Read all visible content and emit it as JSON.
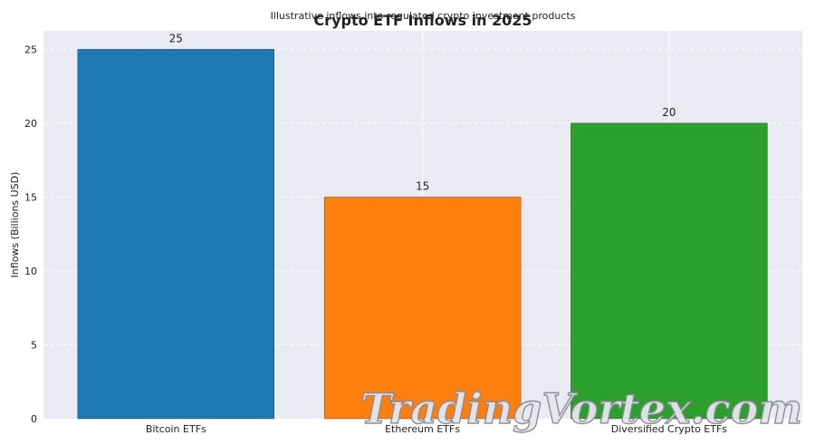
{
  "chart_data": {
    "type": "bar",
    "title": "Crypto ETF Inflows in 2025",
    "subtitle": "Illustrative inflows into regulated crypto investment products",
    "xlabel": "",
    "ylabel": "Inflows (Billions USD)",
    "categories": [
      "Bitcoin ETFs",
      "Ethereum ETFs",
      "Diversified Crypto ETFs"
    ],
    "values": [
      25,
      15,
      20
    ],
    "data_labels": [
      "25",
      "15",
      "20"
    ],
    "colors": [
      "#1f77b4",
      "#ff7f0e",
      "#2ca02c"
    ],
    "ylim": [
      0,
      26.25
    ],
    "yticks": [
      0,
      5,
      10,
      15,
      20,
      25
    ],
    "grid": true,
    "background": "#eaeaf2"
  },
  "watermark": "TradingVortex.com"
}
